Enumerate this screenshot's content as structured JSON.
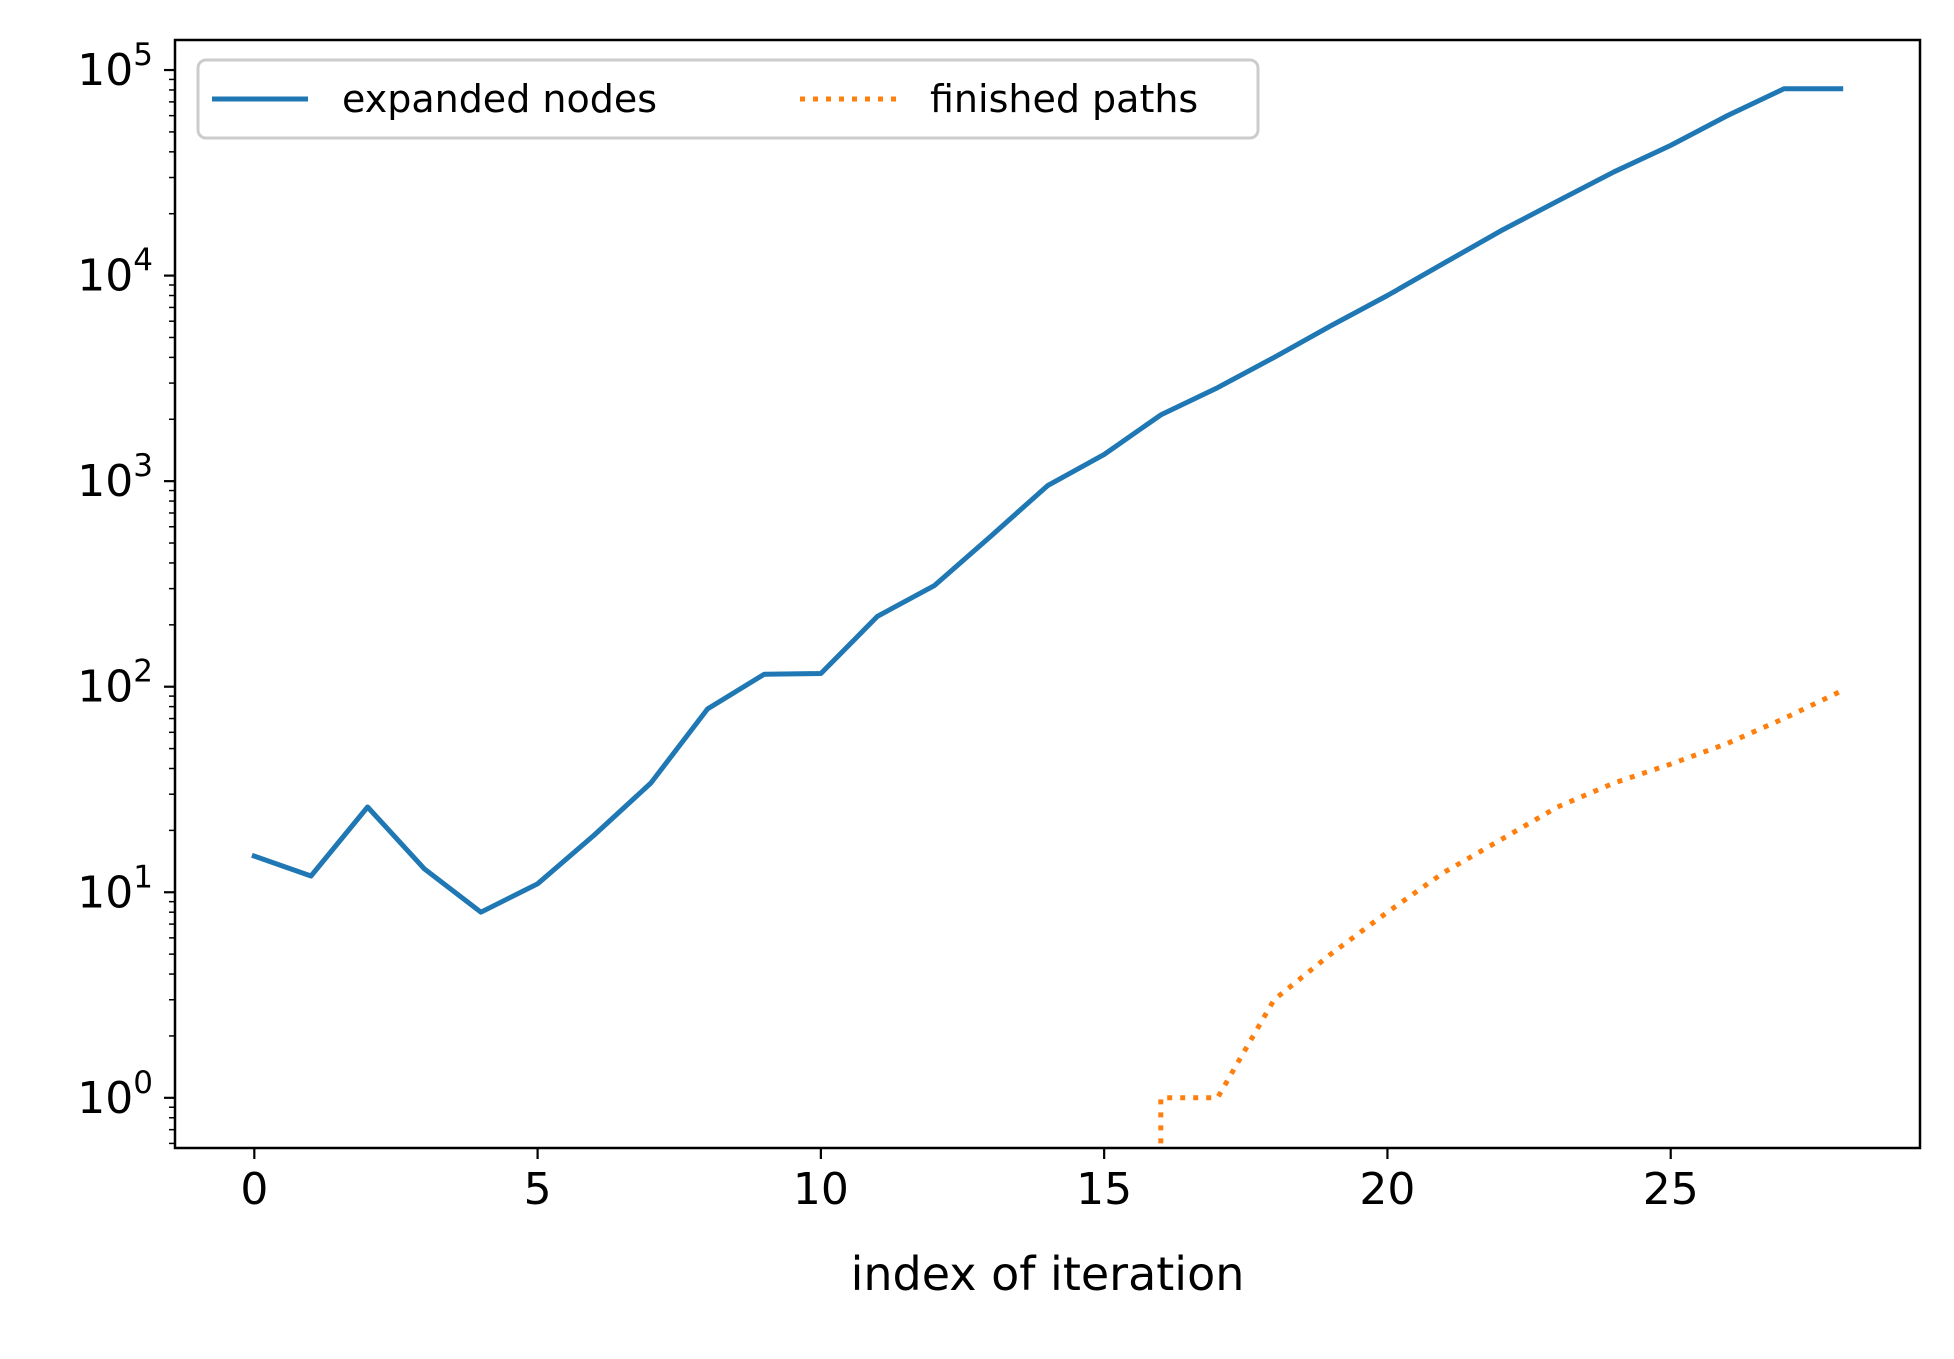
{
  "chart_data": {
    "type": "line",
    "xlabel": "index of iteration",
    "ylabel": "",
    "yscale": "log",
    "xlim": [
      -1.4,
      29.4
    ],
    "ylim": [
      0.57,
      140000
    ],
    "grid": false,
    "legend_position": "top-left",
    "x_ticks": [
      0,
      5,
      10,
      15,
      20,
      25
    ],
    "x_tick_labels": [
      "0",
      "5",
      "10",
      "15",
      "20",
      "25"
    ],
    "y_ticks": [
      {
        "value": 1,
        "base": "10",
        "exp": "0"
      },
      {
        "value": 10,
        "base": "10",
        "exp": "1"
      },
      {
        "value": 100,
        "base": "10",
        "exp": "2"
      },
      {
        "value": 1000,
        "base": "10",
        "exp": "3"
      },
      {
        "value": 10000,
        "base": "10",
        "exp": "4"
      },
      {
        "value": 100000,
        "base": "10",
        "exp": "5"
      }
    ],
    "series": [
      {
        "name": "expanded nodes",
        "color": "#1f77b4",
        "style": "solid",
        "x": [
          0,
          1,
          2,
          3,
          4,
          5,
          6,
          7,
          8,
          9,
          10,
          11,
          12,
          13,
          14,
          15,
          16,
          17,
          18,
          19,
          20,
          21,
          22,
          23,
          24,
          25,
          26,
          27,
          28
        ],
        "y": [
          15,
          12,
          26,
          13,
          8,
          11,
          19,
          34,
          78,
          115,
          116,
          220,
          310,
          540,
          950,
          1350,
          2100,
          2850,
          4000,
          5700,
          8000,
          11500,
          16500,
          23000,
          32000,
          43000,
          60000,
          81000,
          81000
        ]
      },
      {
        "name": "finished paths",
        "color": "#ff7f0e",
        "style": "dotted",
        "x": [
          16,
          16,
          17,
          18,
          19,
          20,
          21,
          22,
          23,
          24,
          25,
          26,
          27,
          28
        ],
        "y": [
          0.6,
          1,
          1,
          3,
          5,
          8,
          12.5,
          18,
          26,
          34,
          42,
          53,
          70,
          95
        ]
      }
    ]
  }
}
